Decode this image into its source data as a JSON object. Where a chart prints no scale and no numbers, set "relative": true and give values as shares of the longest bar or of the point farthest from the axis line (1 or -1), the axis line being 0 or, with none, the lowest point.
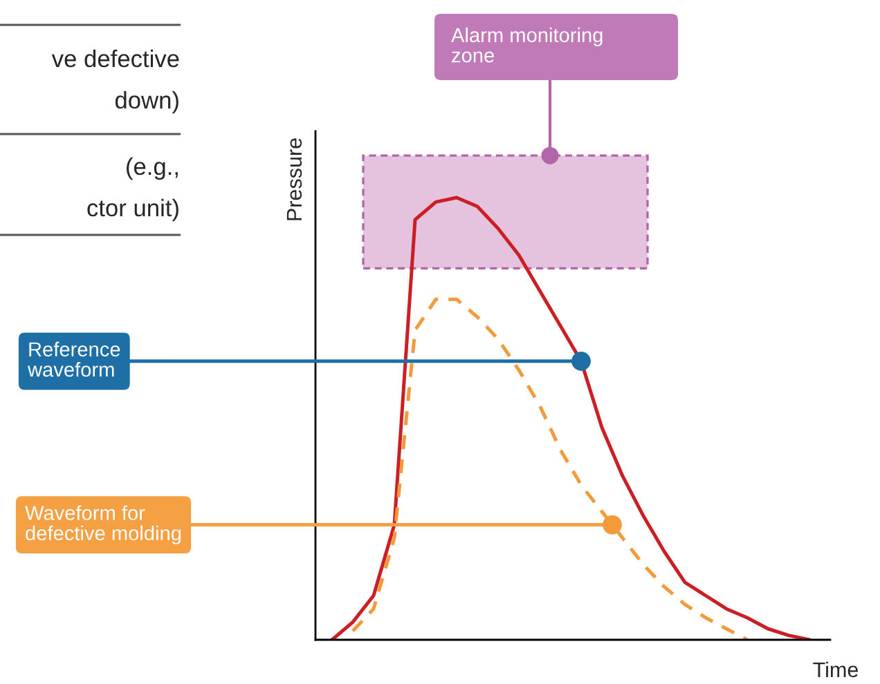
{
  "chart_data": {
    "type": "line",
    "relative": true,
    "xlabel": "Time",
    "ylabel": "Pressure",
    "categories": [
      null,
      null,
      null,
      null,
      null,
      null,
      null,
      null,
      null,
      null,
      null,
      null,
      null,
      null,
      null,
      null,
      null,
      null,
      null,
      null,
      null,
      null,
      null,
      null
    ],
    "series": [
      {
        "name": "Reference\nwaveform",
        "color": "#cc1f25",
        "line_style": "solid",
        "values": [
          0,
          0.04,
          0.1,
          0.26,
          0.95,
          0.99,
          1.0,
          0.98,
          0.93,
          0.87,
          0.79,
          0.71,
          0.63,
          0.48,
          0.37,
          0.28,
          0.2,
          0.13,
          0.1,
          0.07,
          0.05,
          0.025,
          0.01,
          0
        ]
      },
      {
        "name": "Waveform for\ndefective molding",
        "color": "#f39a3b",
        "line_style": "dashed",
        "values": [
          null,
          0.02,
          0.07,
          0.23,
          0.7,
          0.77,
          0.77,
          0.73,
          0.68,
          0.61,
          0.53,
          0.43,
          0.35,
          0.29,
          0.23,
          0.17,
          0.12,
          0.08,
          0.05,
          0.025,
          0,
          null,
          null,
          null
        ]
      }
    ],
    "annotations": [
      "ve defective",
      "down)",
      "(e.g.,",
      "ctor unit)",
      "Alarm monitoring\nzone"
    ],
    "marker": "none"
  }
}
